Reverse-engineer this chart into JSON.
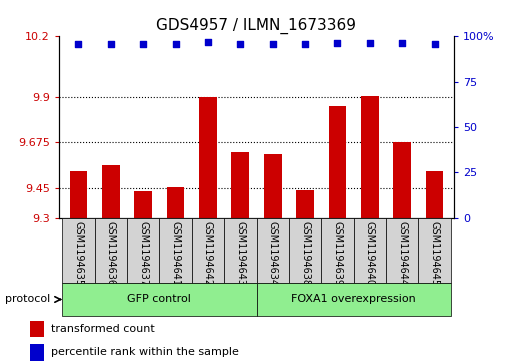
{
  "title": "GDS4957 / ILMN_1673369",
  "samples": [
    "GSM1194635",
    "GSM1194636",
    "GSM1194637",
    "GSM1194641",
    "GSM1194642",
    "GSM1194643",
    "GSM1194634",
    "GSM1194638",
    "GSM1194639",
    "GSM1194640",
    "GSM1194644",
    "GSM1194645"
  ],
  "bar_values": [
    9.53,
    9.56,
    9.435,
    9.452,
    9.9,
    9.625,
    9.618,
    9.44,
    9.855,
    9.905,
    9.675,
    9.53
  ],
  "percentile_values": [
    96,
    96,
    95.5,
    95.5,
    96.8,
    96,
    96,
    95.5,
    96.2,
    96.5,
    96.2,
    96
  ],
  "ylim_left": [
    9.3,
    10.2
  ],
  "ylim_right": [
    0,
    100
  ],
  "yticks_left": [
    9.3,
    9.45,
    9.675,
    9.9,
    10.2
  ],
  "yticks_right": [
    0,
    25,
    50,
    75,
    100
  ],
  "ytick_labels_left": [
    "9.3",
    "9.45",
    "9.675",
    "9.9",
    "10.2"
  ],
  "ytick_labels_right": [
    "0",
    "25",
    "50",
    "75",
    "100%"
  ],
  "hlines": [
    9.45,
    9.675,
    9.9
  ],
  "bar_color": "#cc0000",
  "dot_color": "#0000cc",
  "group1_label": "GFP control",
  "group2_label": "FOXA1 overexpression",
  "group1_count": 6,
  "group2_count": 6,
  "protocol_label": "protocol",
  "legend_bar_label": "transformed count",
  "legend_dot_label": "percentile rank within the sample",
  "sample_box_color": "#d3d3d3",
  "group_bg_color": "#90ee90",
  "plot_bg_color": "#ffffff",
  "title_fontsize": 11,
  "tick_fontsize": 8,
  "label_fontsize": 8,
  "sample_fontsize": 7
}
